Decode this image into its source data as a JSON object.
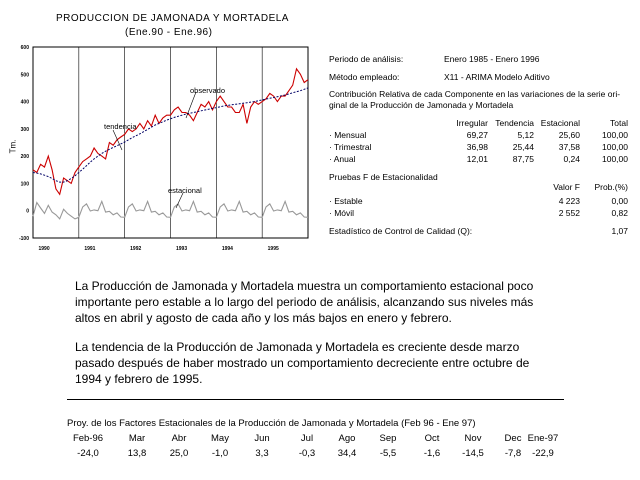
{
  "chart": {
    "title": "PRODUCCION DE JAMONADA Y MORTADELA",
    "subtitle": "(Ene.90 - Ene.96)",
    "ylabel": "Tm.",
    "annotations": {
      "observed": "observado",
      "trend": "tendencia",
      "seasonal": "estacional"
    }
  },
  "chart_data": {
    "type": "line",
    "title": "PRODUCCION DE JAMONADA Y MORTADELA",
    "subtitle": "(Ene.90 - Ene.96)",
    "ylabel": "Tm.",
    "ylim": [
      -100,
      600
    ],
    "yticks": [
      "600",
      "500",
      "400",
      "300",
      "200",
      "100",
      "0",
      "-100"
    ],
    "xticks": [
      "1990",
      "1991",
      "1992",
      "1993",
      "1994",
      "1995"
    ],
    "grid": "vertical year lines",
    "series": [
      {
        "name": "observado",
        "color": "#cc0000",
        "values": [
          150,
          140,
          170,
          160,
          200,
          150,
          80,
          60,
          120,
          110,
          100,
          140,
          160,
          180,
          190,
          200,
          230,
          210,
          200,
          190,
          250,
          240,
          260,
          270,
          280,
          300,
          290,
          300,
          320,
          300,
          330,
          310,
          350,
          320,
          340,
          350,
          350,
          370,
          380,
          360,
          360,
          350,
          330,
          360,
          390,
          380,
          400,
          370,
          400,
          420,
          400,
          380,
          380,
          360,
          360,
          390,
          320,
          380,
          400,
          390,
          400,
          410,
          430,
          420,
          400,
          420,
          420,
          440,
          460,
          520,
          500,
          470,
          480
        ]
      },
      {
        "name": "tendencia",
        "color": "#000066",
        "values": [
          140,
          138,
          135,
          130,
          125,
          118,
          110,
          105,
          105,
          110,
          118,
          128,
          140,
          152,
          165,
          178,
          190,
          200,
          210,
          218,
          225,
          232,
          238,
          245,
          252,
          260,
          268,
          275,
          282,
          290,
          298,
          306,
          314,
          320,
          326,
          332,
          337,
          342,
          346,
          350,
          354,
          357,
          360,
          363,
          366,
          369,
          372,
          375,
          378,
          381,
          384,
          386,
          388,
          390,
          392,
          394,
          396,
          398,
          400,
          403,
          406,
          409,
          412,
          415,
          418,
          421,
          424,
          428,
          432,
          436,
          440,
          445,
          450
        ]
      },
      {
        "name": "estacional",
        "color": "#999999",
        "values": [
          -20,
          30,
          10,
          -10,
          20,
          -5,
          -15,
          -30,
          5,
          -10,
          -20,
          -30,
          -24,
          14,
          25,
          -1,
          3,
          0,
          34,
          -5,
          -2,
          -15,
          -8,
          -23,
          -24,
          14,
          25,
          -1,
          3,
          0,
          34,
          -5,
          -2,
          -15,
          -8,
          -23,
          -24,
          14,
          25,
          -1,
          3,
          0,
          34,
          -5,
          -2,
          -15,
          -8,
          -23,
          -24,
          14,
          25,
          -1,
          3,
          0,
          34,
          -5,
          -2,
          -15,
          -8,
          -23,
          -24,
          14,
          25,
          -1,
          3,
          0,
          34,
          -5,
          -2,
          -15,
          -8,
          -23,
          -24
        ]
      }
    ]
  },
  "info": {
    "periodo_label": "Periodo de análisis:",
    "periodo_value": "Enero 1985 - Enero 1996",
    "metodo_label": "Método empleado:",
    "metodo_value": "X11 - ARIMA Modelo Aditivo",
    "contrib_line1": "Contribución Relativa de cada Componente en las variaciones de la serie ori-",
    "contrib_line2": "ginal de la Producción de Jamonada y Mortadela",
    "headers": [
      "Irregular",
      "Tendencia",
      "Estacional",
      "Total"
    ],
    "rows": [
      {
        "label": "· Mensual",
        "values": [
          "69,27",
          "5,12",
          "25,60",
          "100,00"
        ]
      },
      {
        "label": "· Trimestral",
        "values": [
          "36,98",
          "25,44",
          "37,58",
          "100,00"
        ]
      },
      {
        "label": "· Anual",
        "values": [
          "12,01",
          "87,75",
          "0,24",
          "100,00"
        ]
      }
    ],
    "pruebas_title": "Pruebas F de Estacionalidad",
    "pruebas_headers": [
      "Valor F",
      "Prob.(%)"
    ],
    "pruebas_rows": [
      {
        "label": "· Estable",
        "values": [
          "4 223",
          "0,00"
        ]
      },
      {
        "label": "· Móvil",
        "values": [
          "2 552",
          "0,82"
        ]
      }
    ],
    "qc_label": "Estadístico de Control de Calidad (Q):",
    "qc_value": "1,07"
  },
  "text": {
    "p1": "La Producción de Jamonada y Mortadela muestra un comportamiento estacional poco importante pero estable a lo largo del periodo de análisis, alcanzando sus niveles  más altos en abril y agosto de cada año y los más bajos en enero y  febrero.",
    "p2": "La tendencia de la Producción de Jamonada y Mortadela es creciente desde marzo pasado después de haber mostrado un comportamiento decreciente entre octubre de 1994 y febrero de 1995."
  },
  "footer": {
    "title": "Proy. de los Factores Estacionales de la Producción de Jamonada y Mortadela  (Feb 96 - Ene 97)",
    "months": [
      "Feb-96",
      "Mar",
      "Abr",
      "May",
      "Jun",
      "Jul",
      "Ago",
      "Sep",
      "Oct",
      "Nov",
      "Dec",
      "Ene-97"
    ],
    "values": [
      "-24,0",
      "13,8",
      "25,0",
      "-1,0",
      "3,3",
      "-0,3",
      "34,4",
      "-5,5",
      "-1,6",
      "-14,5",
      "-7,8",
      "-22,9"
    ]
  }
}
